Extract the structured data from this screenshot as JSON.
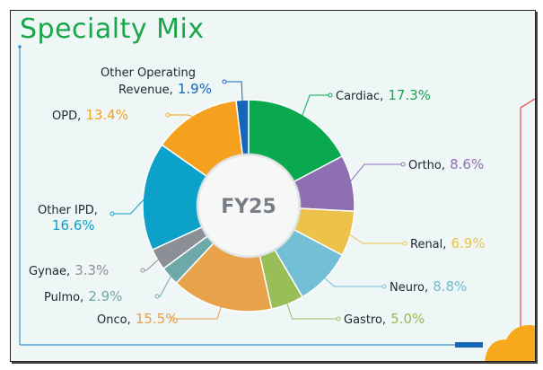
{
  "title": "Specialty Mix",
  "chart_data": {
    "type": "pie",
    "subtype": "donut",
    "title": "Specialty Mix",
    "center_label": "FY25",
    "unit": "%",
    "slices": [
      {
        "name": "Cardiac",
        "value": 17.3,
        "display": "17.3%",
        "color": "#0aa84f"
      },
      {
        "name": "Ortho",
        "value": 8.6,
        "display": "8.6%",
        "color": "#8e6fb2"
      },
      {
        "name": "Renal",
        "value": 6.9,
        "display": "6.9%",
        "color": "#ecc24a"
      },
      {
        "name": "Neuro",
        "value": 8.8,
        "display": "8.8%",
        "color": "#73bfd5"
      },
      {
        "name": "Gastro",
        "value": 5.0,
        "display": "5.0%",
        "color": "#99bd57"
      },
      {
        "name": "Onco",
        "value": 15.5,
        "display": "15.5%",
        "color": "#e8a24a"
      },
      {
        "name": "Pulmo",
        "value": 2.9,
        "display": "2.9%",
        "color": "#6ea8a8"
      },
      {
        "name": "Gynae",
        "value": 3.3,
        "display": "3.3%",
        "color": "#8d8f96"
      },
      {
        "name": "Other IPD",
        "value": 16.6,
        "display": "16.6%",
        "color": "#0ba1c9"
      },
      {
        "name": "OPD",
        "value": 13.4,
        "display": "13.4%",
        "color": "#f5a01f"
      },
      {
        "name": "Other Operating Revenue",
        "value": 1.9,
        "display": "1.9%",
        "color": "#1565b8"
      }
    ]
  },
  "labels": {
    "cardiac": {
      "name": "Cardiac,",
      "value": "17.3%",
      "color": "#17a450"
    },
    "ortho": {
      "name": "Ortho,",
      "value": "8.6%",
      "color": "#8e6fb2"
    },
    "renal": {
      "name": "Renal,",
      "value": "6.9%",
      "color": "#ecc24a"
    },
    "neuro": {
      "name": "Neuro,",
      "value": "8.8%",
      "color": "#6fbad2"
    },
    "gastro": {
      "name": "Gastro,",
      "value": "5.0%",
      "color": "#95bb52"
    },
    "onco": {
      "name": "Onco,",
      "value": "15.5%",
      "color": "#e8a24a"
    },
    "pulmo": {
      "name": "Pulmo,",
      "value": "2.9%",
      "color": "#6ea8a8"
    },
    "gynae": {
      "name": "Gynae,",
      "value": "3.3%",
      "color": "#8d8f96"
    },
    "other_ipd": {
      "name": "Other IPD,",
      "value": "16.6%",
      "color": "#0ba1c9"
    },
    "opd": {
      "name": "OPD,",
      "value": "13.4%",
      "color": "#f5a01f"
    },
    "other_op": {
      "line1": "Other Operating",
      "name": "Revenue,",
      "value": "1.9%",
      "color": "#1565b8"
    }
  }
}
